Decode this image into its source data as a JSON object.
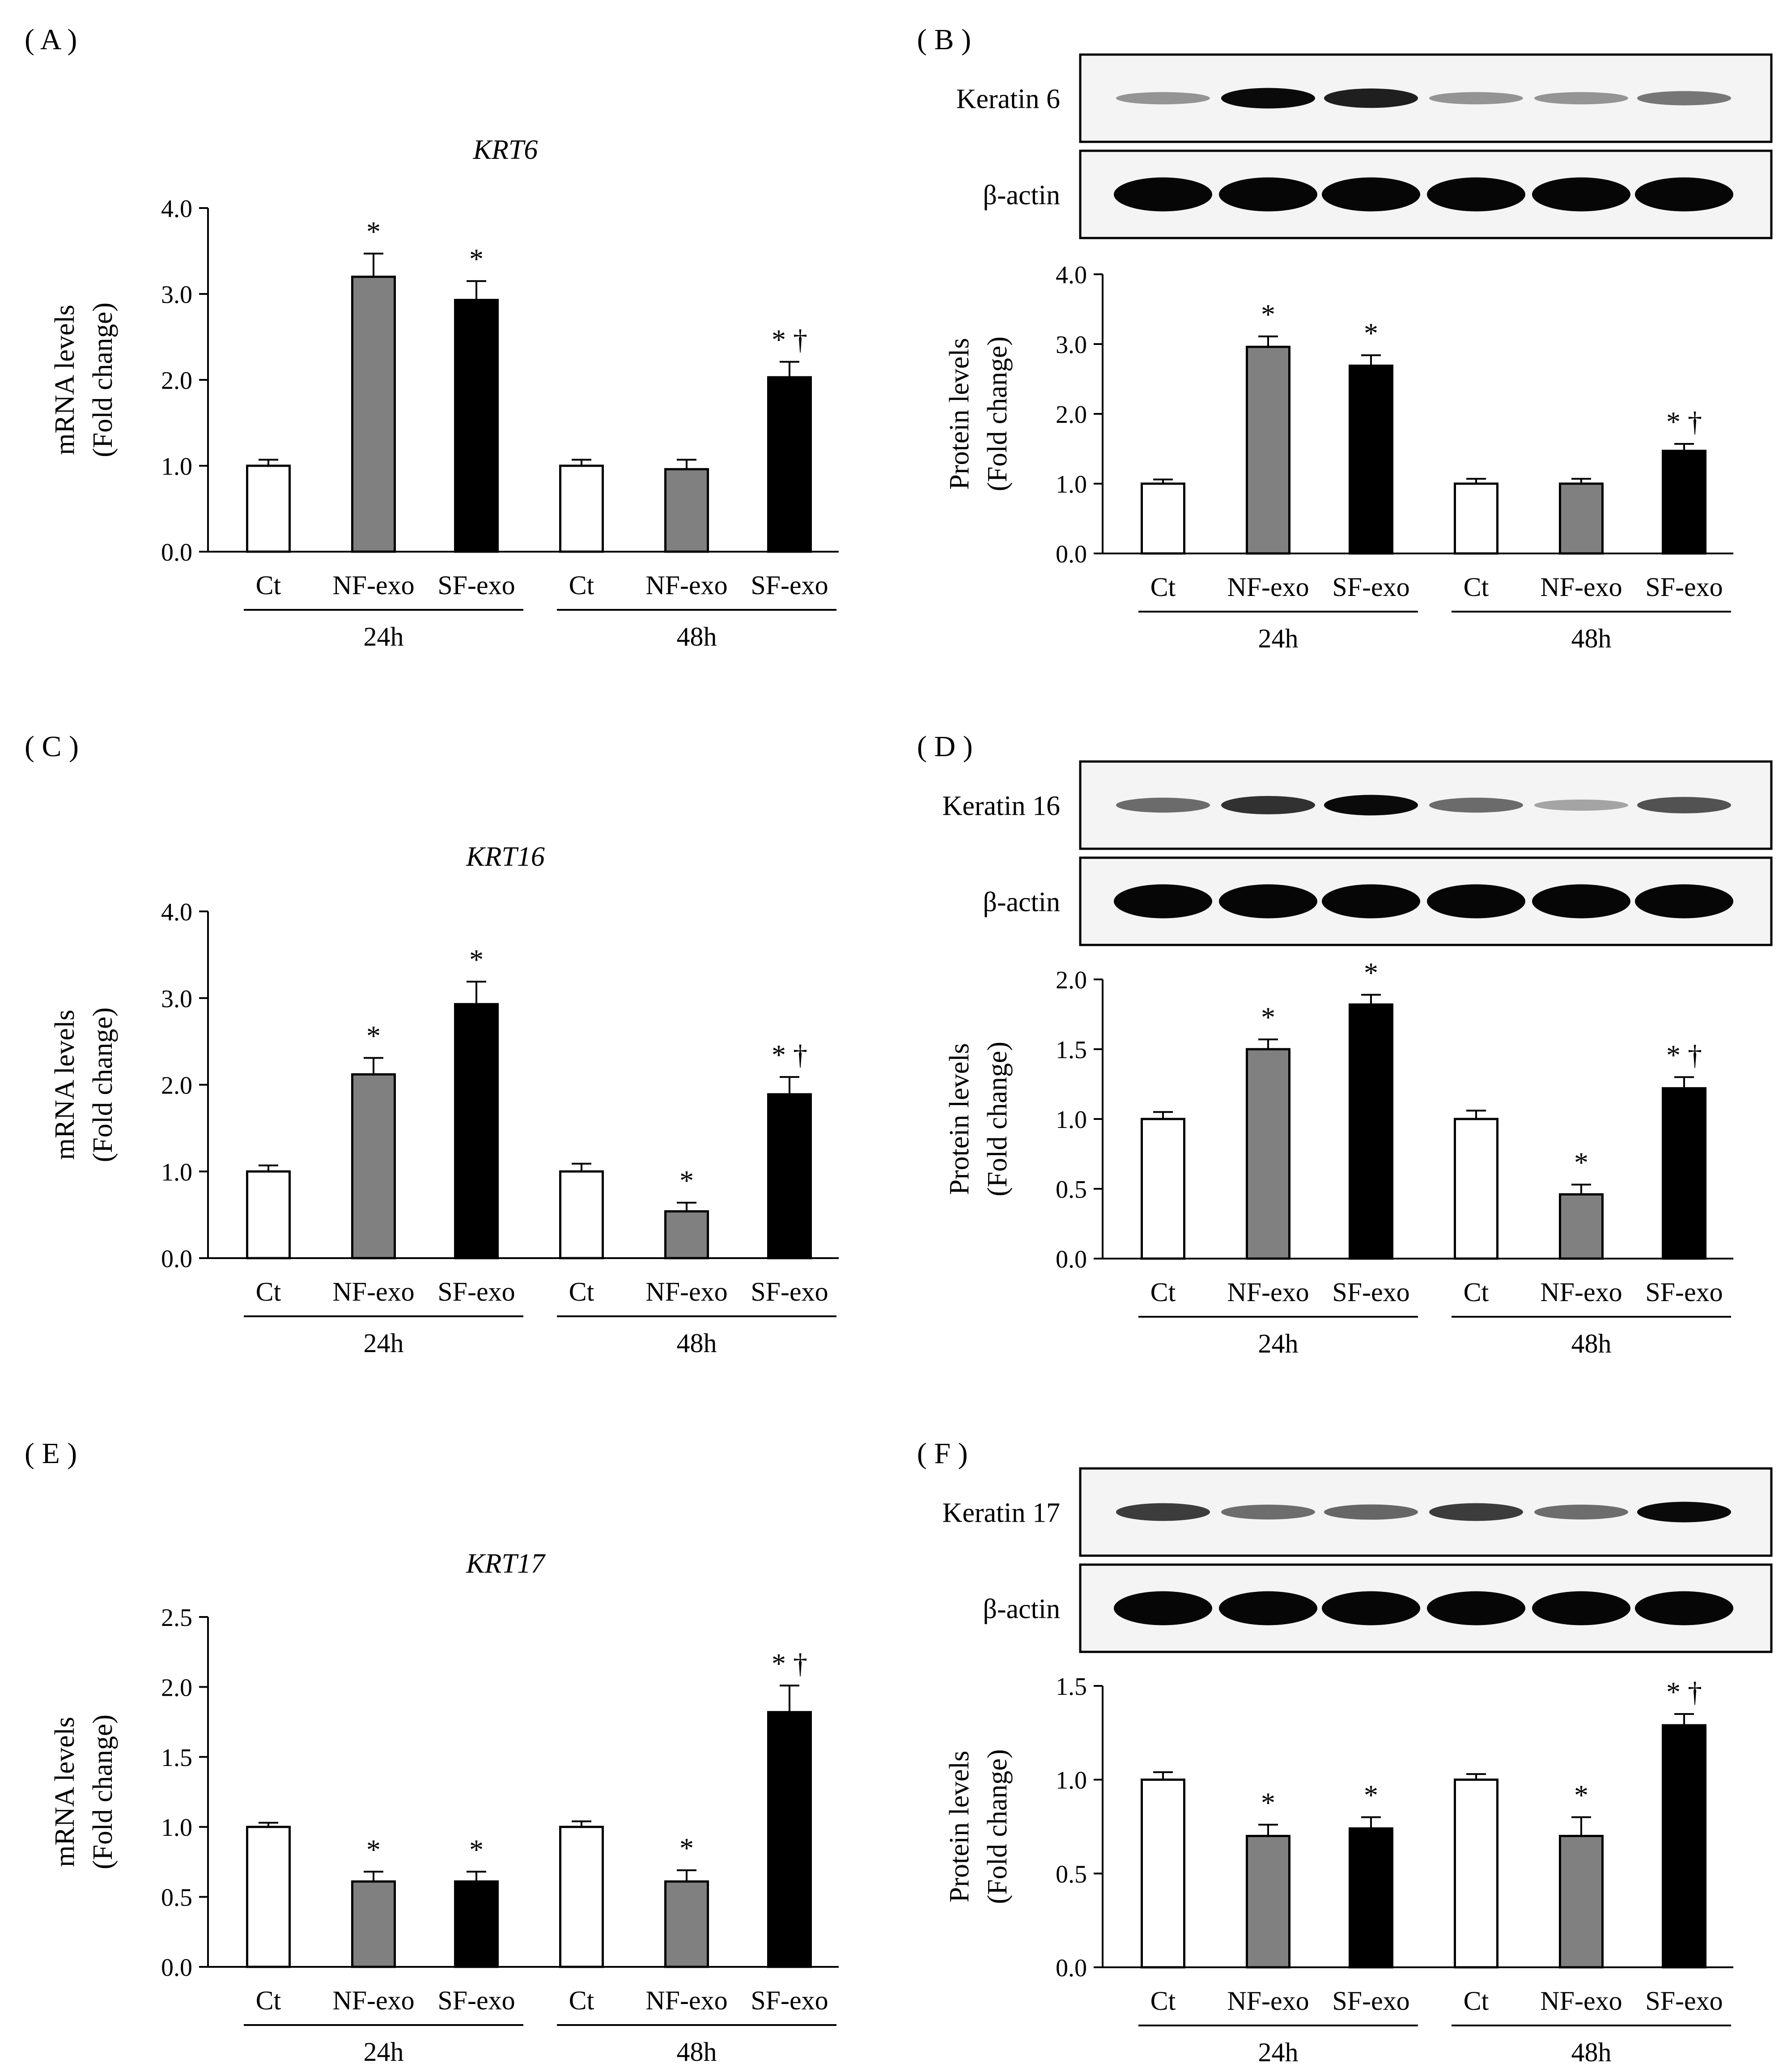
{
  "groups": [
    "24h",
    "48h"
  ],
  "conditions": [
    "Ct",
    "NF-exo",
    "SF-exo"
  ],
  "protein_axis_label": [
    "Protein levels",
    "(Fold change)"
  ],
  "mrna_axis_label": [
    "mRNA levels",
    "(Fold change)"
  ],
  "loading_control": "β-actin",
  "colors": {
    "Ct": "#ffffff",
    "NF-exo": "#808080",
    "SF-exo": "#000000"
  },
  "chart_data": [
    {
      "panel": "( A )",
      "type": "bar",
      "title": "KRT6",
      "title_italic": true,
      "ylabel": [
        "mRNA levels",
        "(Fold change)"
      ],
      "ylim": [
        0,
        4.0
      ],
      "ticks": [
        0.0,
        1.0,
        2.0,
        3.0,
        4.0
      ],
      "tick_decimals": 1,
      "groups": [
        "24h",
        "48h"
      ],
      "categories": [
        "Ct",
        "NF-exo",
        "SF-exo",
        "Ct",
        "NF-exo",
        "SF-exo"
      ],
      "values": [
        1.0,
        3.2,
        2.93,
        1.0,
        0.96,
        2.03
      ],
      "errors": [
        0.07,
        0.27,
        0.22,
        0.07,
        0.11,
        0.18
      ],
      "marks": [
        "",
        "*",
        "*",
        "",
        "",
        "* †"
      ]
    },
    {
      "panel": "( B )",
      "type": "bar",
      "title": "",
      "blot_label": "Keratin 6",
      "ylabel": [
        "Protein levels",
        "(Fold change)"
      ],
      "ylim": [
        0,
        4.0
      ],
      "ticks": [
        0.0,
        1.0,
        2.0,
        3.0,
        4.0
      ],
      "tick_decimals": 1,
      "groups": [
        "24h",
        "48h"
      ],
      "categories": [
        "Ct",
        "NF-exo",
        "SF-exo",
        "Ct",
        "NF-exo",
        "SF-exo"
      ],
      "values": [
        1.0,
        2.96,
        2.69,
        1.0,
        1.0,
        1.47
      ],
      "errors": [
        0.06,
        0.15,
        0.15,
        0.07,
        0.07,
        0.1
      ],
      "marks": [
        "",
        "*",
        "*",
        "",
        "",
        "* †"
      ]
    },
    {
      "panel": "( C )",
      "type": "bar",
      "title": "KRT16",
      "title_italic": true,
      "ylabel": [
        "mRNA levels",
        "(Fold change)"
      ],
      "ylim": [
        0,
        4.0
      ],
      "ticks": [
        0.0,
        1.0,
        2.0,
        3.0,
        4.0
      ],
      "tick_decimals": 1,
      "groups": [
        "24h",
        "48h"
      ],
      "categories": [
        "Ct",
        "NF-exo",
        "SF-exo",
        "Ct",
        "NF-exo",
        "SF-exo"
      ],
      "values": [
        1.0,
        2.12,
        2.93,
        1.0,
        0.54,
        1.89
      ],
      "errors": [
        0.07,
        0.19,
        0.26,
        0.09,
        0.1,
        0.2
      ],
      "marks": [
        "",
        "*",
        "*",
        "",
        "*",
        "* †"
      ]
    },
    {
      "panel": "( D )",
      "type": "bar",
      "title": "",
      "blot_label": "Keratin 16",
      "ylabel": [
        "Protein levels",
        "(Fold change)"
      ],
      "ylim": [
        0,
        2.0
      ],
      "ticks": [
        0.0,
        0.5,
        1.0,
        1.5,
        2.0
      ],
      "tick_decimals": 1,
      "groups": [
        "24h",
        "48h"
      ],
      "categories": [
        "Ct",
        "NF-exo",
        "SF-exo",
        "Ct",
        "NF-exo",
        "SF-exo"
      ],
      "values": [
        1.0,
        1.5,
        1.82,
        1.0,
        0.46,
        1.22
      ],
      "errors": [
        0.05,
        0.07,
        0.07,
        0.06,
        0.07,
        0.08
      ],
      "marks": [
        "",
        "*",
        "*",
        "",
        "*",
        "* †"
      ]
    },
    {
      "panel": "( E )",
      "type": "bar",
      "title": "KRT17",
      "title_italic": true,
      "ylabel": [
        "mRNA levels",
        "(Fold change)"
      ],
      "ylim": [
        0,
        2.5
      ],
      "ticks": [
        0.0,
        0.5,
        1.0,
        1.5,
        2.0,
        2.5
      ],
      "tick_decimals": 1,
      "groups": [
        "24h",
        "48h"
      ],
      "categories": [
        "Ct",
        "NF-exo",
        "SF-exo",
        "Ct",
        "NF-exo",
        "SF-exo"
      ],
      "values": [
        1.0,
        0.61,
        0.61,
        1.0,
        0.61,
        1.82
      ],
      "errors": [
        0.03,
        0.07,
        0.07,
        0.04,
        0.08,
        0.19
      ],
      "marks": [
        "",
        "*",
        "*",
        "",
        "*",
        "* †"
      ]
    },
    {
      "panel": "( F )",
      "type": "bar",
      "title": "",
      "blot_label": "Keratin 17",
      "ylabel": [
        "Protein levels",
        "(Fold change)"
      ],
      "ylim": [
        0,
        1.5
      ],
      "ticks": [
        0.0,
        0.5,
        1.0,
        1.5
      ],
      "tick_decimals": 1,
      "groups": [
        "24h",
        "48h"
      ],
      "categories": [
        "Ct",
        "NF-exo",
        "SF-exo",
        "Ct",
        "NF-exo",
        "SF-exo"
      ],
      "values": [
        1.0,
        0.7,
        0.74,
        1.0,
        0.7,
        1.29
      ],
      "errors": [
        0.04,
        0.06,
        0.06,
        0.03,
        0.1,
        0.06
      ],
      "marks": [
        "",
        "*",
        "*",
        "",
        "*",
        "* †"
      ]
    }
  ]
}
